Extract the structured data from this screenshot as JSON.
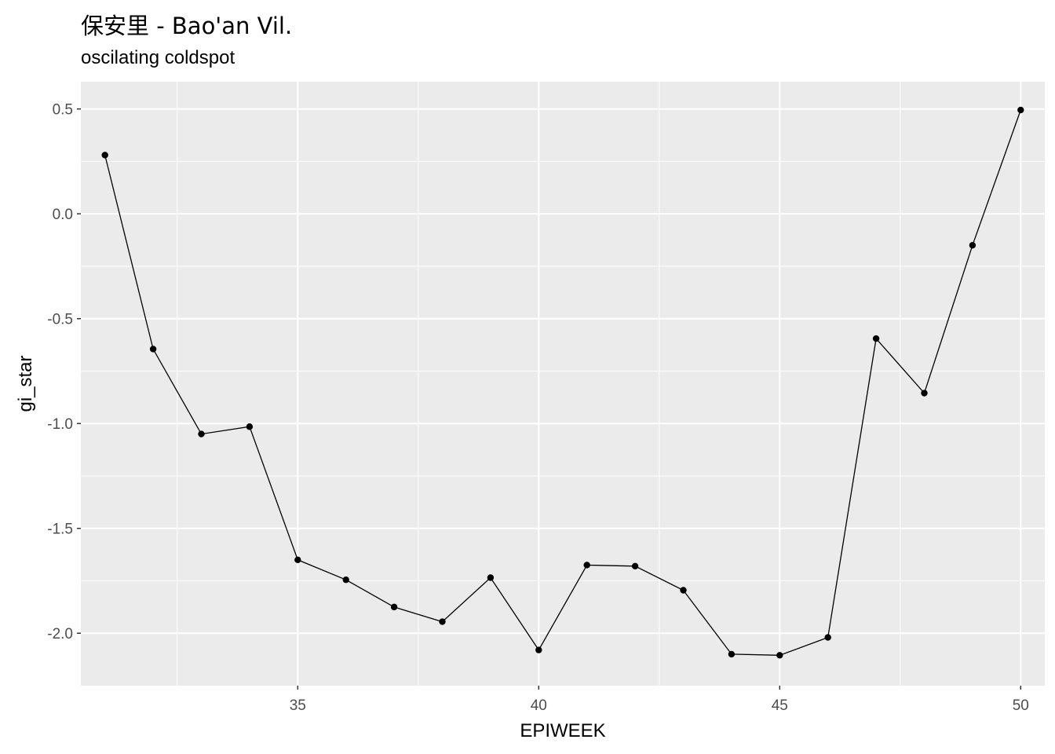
{
  "chart_data": {
    "type": "line",
    "title": "保安里 - Bao'an Vil.",
    "subtitle": "oscilating coldspot",
    "xlabel": "EPIWEEK",
    "ylabel": "gi_star",
    "xlim": [
      30.5,
      50.5
    ],
    "ylim": [
      -2.25,
      0.63
    ],
    "x_ticks": [
      35,
      40,
      45,
      50
    ],
    "x_tick_labels": [
      "35",
      "40",
      "45",
      "50"
    ],
    "y_ticks": [
      0.5,
      0.0,
      -0.5,
      -1.0,
      -1.5,
      -2.0
    ],
    "y_tick_labels": [
      "0.5",
      "0.0",
      "-0.5",
      "-1.0",
      "-1.5",
      "-2.0"
    ],
    "grid": true,
    "panel_color": "#ebebeb",
    "grid_color": "#ffffff",
    "line_color": "#000000",
    "x": [
      31,
      32,
      33,
      34,
      35,
      36,
      37,
      38,
      39,
      40,
      41,
      42,
      43,
      44,
      45,
      46,
      47,
      48,
      49,
      50
    ],
    "series": [
      {
        "values": [
          0.28,
          -0.645,
          -1.05,
          -1.015,
          -1.65,
          -1.745,
          -1.875,
          -1.945,
          -1.735,
          -2.08,
          -1.675,
          -1.68,
          -1.795,
          -2.1,
          -2.105,
          -2.02,
          -0.595,
          -0.855,
          -0.15,
          0.495
        ]
      }
    ]
  }
}
